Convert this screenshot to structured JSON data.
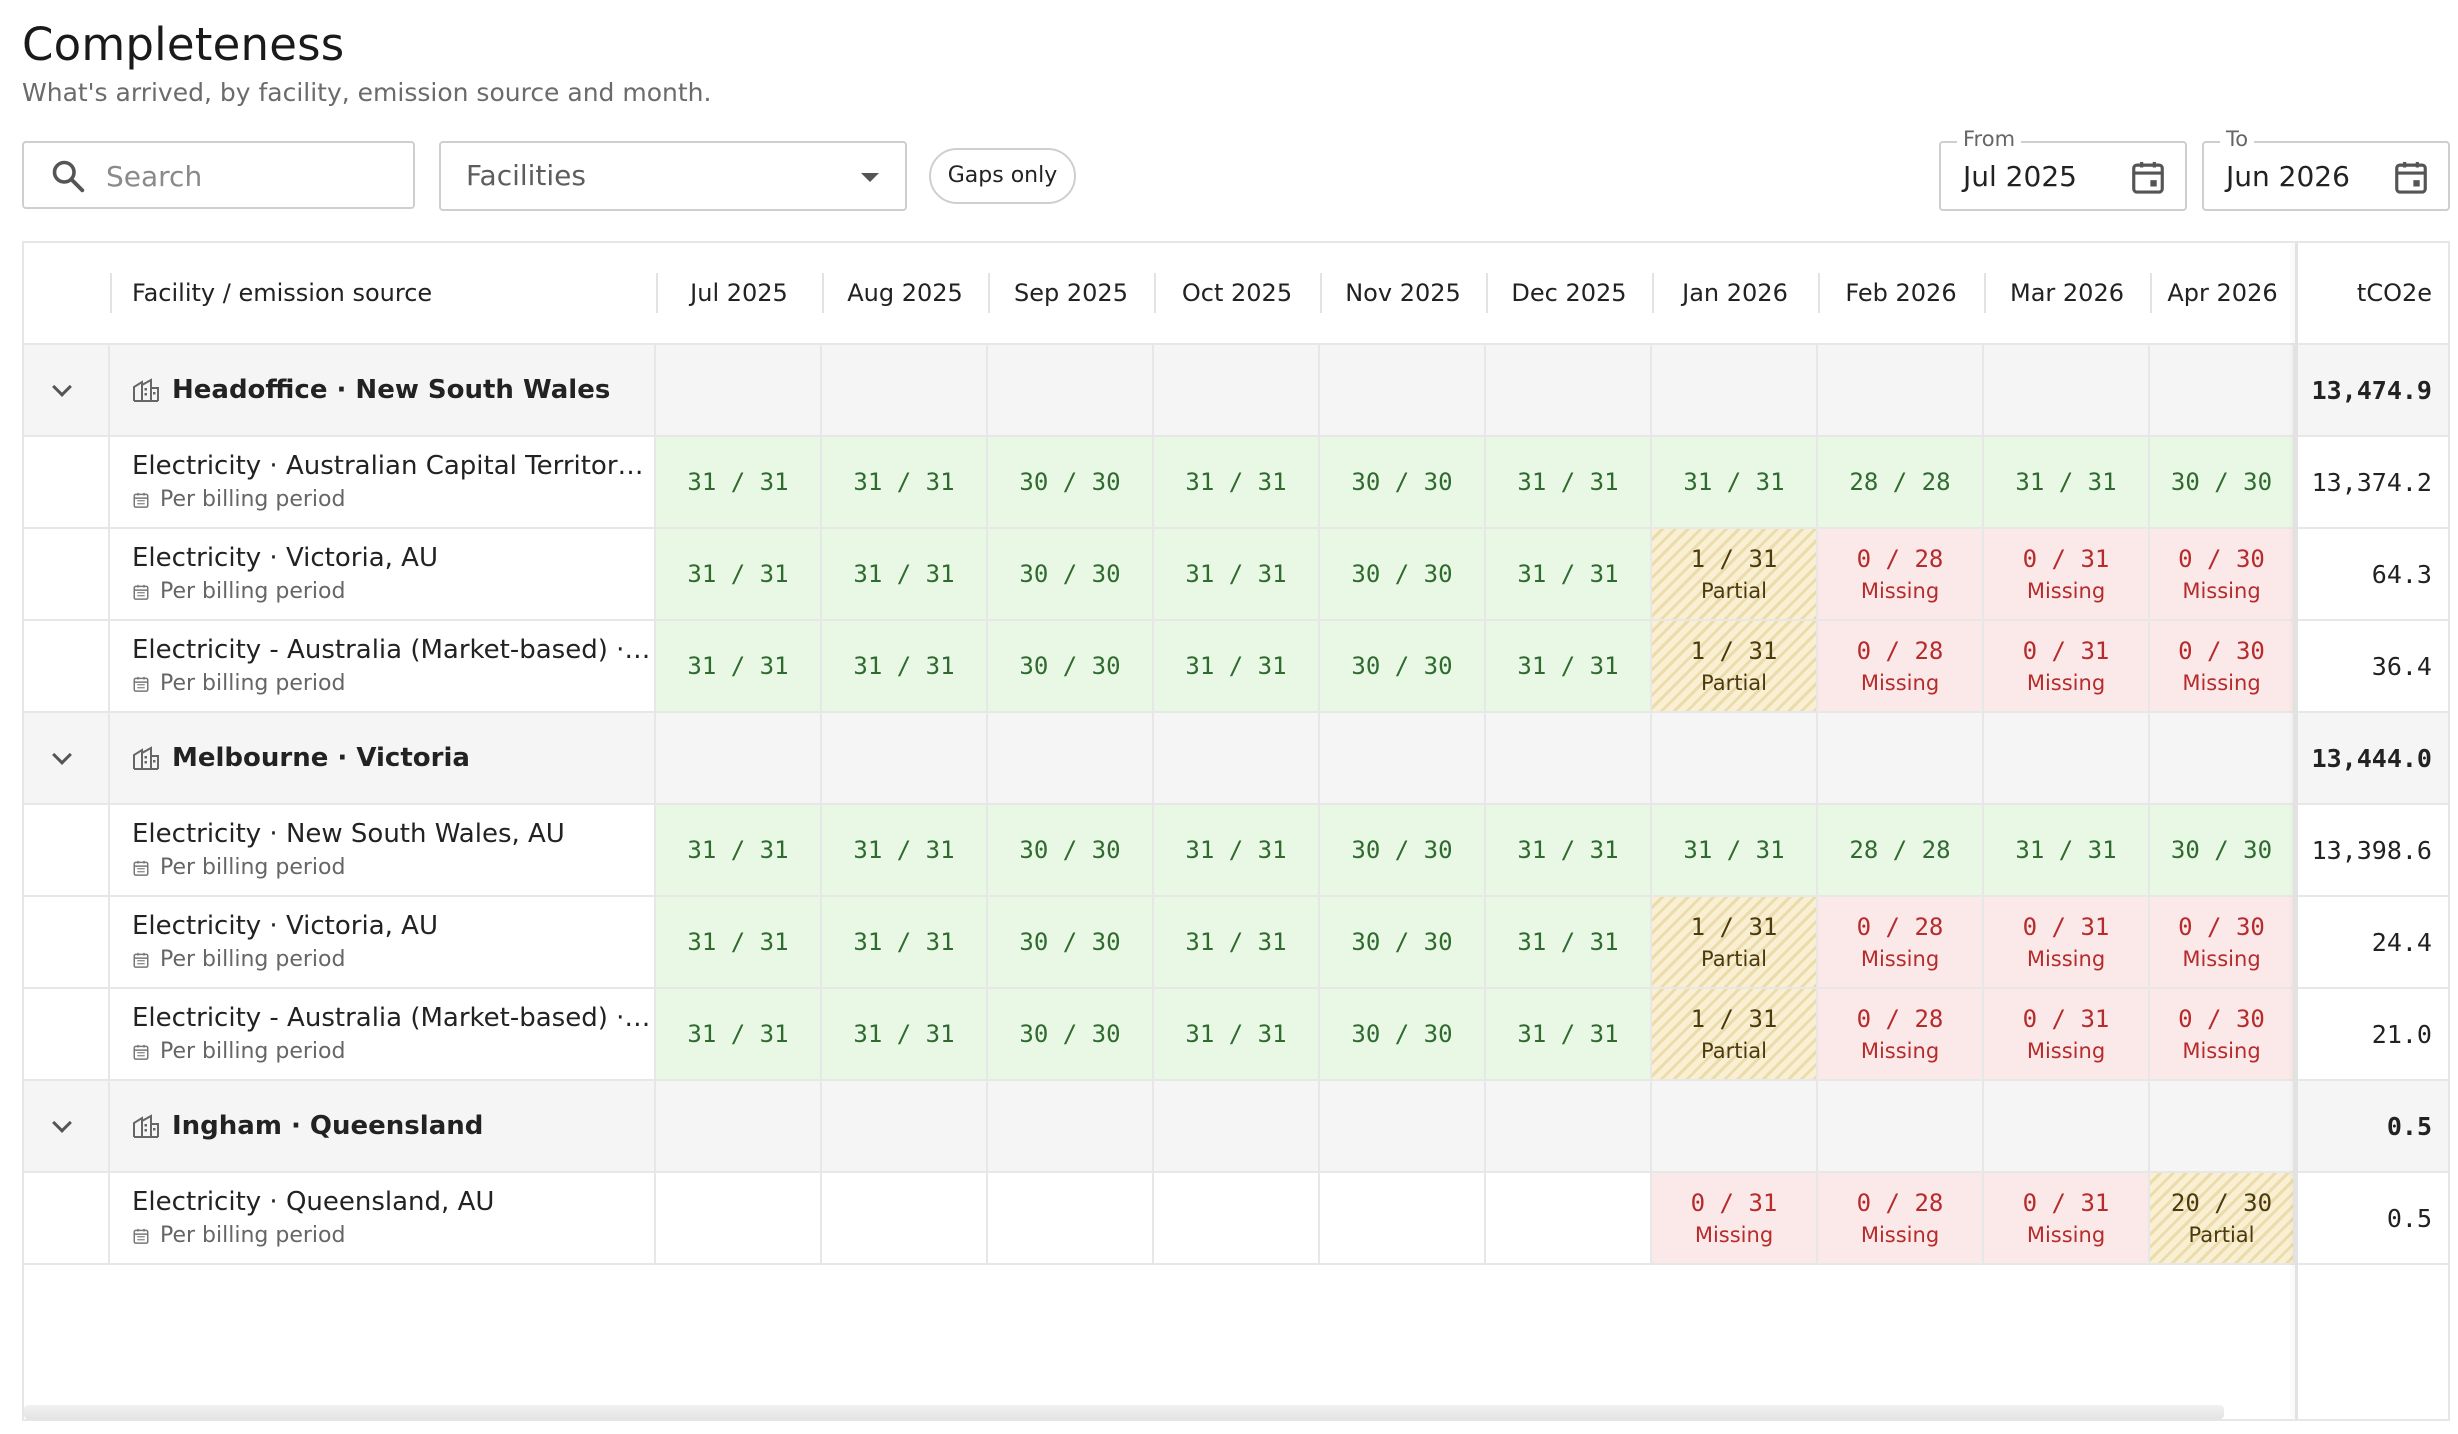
{
  "page": {
    "title": "Completeness",
    "subtitle": "What's arrived, by facility, emission source and month."
  },
  "filters": {
    "search_placeholder": "Search",
    "facilities_label": "Facilities",
    "gaps_label": "Gaps only",
    "from_label": "From",
    "from_value": "Jul 2025",
    "to_label": "To",
    "to_value": "Jun 2026"
  },
  "table": {
    "col_facility": "Facility / emission source",
    "months": [
      "Jul 2025",
      "Aug 2025",
      "Sep 2025",
      "Oct 2025",
      "Nov 2025",
      "Dec 2025",
      "Jan 2026",
      "Feb 2026",
      "Mar 2026",
      "Apr 2026"
    ],
    "col_total": "tCO2e",
    "groups": [
      {
        "name": "Headoffice · New South Wales",
        "total": "13,474.9",
        "rows": [
          {
            "name": "Electricity · Australian Capital Territory, AU",
            "period": "Per billing period",
            "total": "13,374.2",
            "cells": [
              {
                "v": "31 / 31",
                "s": "",
                "state": "complete"
              },
              {
                "v": "31 / 31",
                "s": "",
                "state": "complete"
              },
              {
                "v": "30 / 30",
                "s": "",
                "state": "complete"
              },
              {
                "v": "31 / 31",
                "s": "",
                "state": "complete"
              },
              {
                "v": "30 / 30",
                "s": "",
                "state": "complete"
              },
              {
                "v": "31 / 31",
                "s": "",
                "state": "complete"
              },
              {
                "v": "31 / 31",
                "s": "",
                "state": "complete"
              },
              {
                "v": "28 / 28",
                "s": "",
                "state": "complete"
              },
              {
                "v": "31 / 31",
                "s": "",
                "state": "complete"
              },
              {
                "v": "30 / 30",
                "s": "",
                "state": "complete"
              }
            ]
          },
          {
            "name": "Electricity · Victoria, AU",
            "period": "Per billing period",
            "total": "64.3",
            "cells": [
              {
                "v": "31 / 31",
                "s": "",
                "state": "complete"
              },
              {
                "v": "31 / 31",
                "s": "",
                "state": "complete"
              },
              {
                "v": "30 / 30",
                "s": "",
                "state": "complete"
              },
              {
                "v": "31 / 31",
                "s": "",
                "state": "complete"
              },
              {
                "v": "30 / 30",
                "s": "",
                "state": "complete"
              },
              {
                "v": "31 / 31",
                "s": "",
                "state": "complete"
              },
              {
                "v": "1 / 31",
                "s": "Partial",
                "state": "partial"
              },
              {
                "v": "0 / 28",
                "s": "Missing",
                "state": "missing"
              },
              {
                "v": "0 / 31",
                "s": "Missing",
                "state": "missing"
              },
              {
                "v": "0 / 30",
                "s": "Missing",
                "state": "missing"
              }
            ]
          },
          {
            "name": "Electricity - Australia (Market-based) · Aus...",
            "period": "Per billing period",
            "total": "36.4",
            "cells": [
              {
                "v": "31 / 31",
                "s": "",
                "state": "complete"
              },
              {
                "v": "31 / 31",
                "s": "",
                "state": "complete"
              },
              {
                "v": "30 / 30",
                "s": "",
                "state": "complete"
              },
              {
                "v": "31 / 31",
                "s": "",
                "state": "complete"
              },
              {
                "v": "30 / 30",
                "s": "",
                "state": "complete"
              },
              {
                "v": "31 / 31",
                "s": "",
                "state": "complete"
              },
              {
                "v": "1 / 31",
                "s": "Partial",
                "state": "partial"
              },
              {
                "v": "0 / 28",
                "s": "Missing",
                "state": "missing"
              },
              {
                "v": "0 / 31",
                "s": "Missing",
                "state": "missing"
              },
              {
                "v": "0 / 30",
                "s": "Missing",
                "state": "missing"
              }
            ]
          }
        ]
      },
      {
        "name": "Melbourne · Victoria",
        "total": "13,444.0",
        "rows": [
          {
            "name": "Electricity · New South Wales, AU",
            "period": "Per billing period",
            "total": "13,398.6",
            "cells": [
              {
                "v": "31 / 31",
                "s": "",
                "state": "complete"
              },
              {
                "v": "31 / 31",
                "s": "",
                "state": "complete"
              },
              {
                "v": "30 / 30",
                "s": "",
                "state": "complete"
              },
              {
                "v": "31 / 31",
                "s": "",
                "state": "complete"
              },
              {
                "v": "30 / 30",
                "s": "",
                "state": "complete"
              },
              {
                "v": "31 / 31",
                "s": "",
                "state": "complete"
              },
              {
                "v": "31 / 31",
                "s": "",
                "state": "complete"
              },
              {
                "v": "28 / 28",
                "s": "",
                "state": "complete"
              },
              {
                "v": "31 / 31",
                "s": "",
                "state": "complete"
              },
              {
                "v": "30 / 30",
                "s": "",
                "state": "complete"
              }
            ]
          },
          {
            "name": "Electricity · Victoria, AU",
            "period": "Per billing period",
            "total": "24.4",
            "cells": [
              {
                "v": "31 / 31",
                "s": "",
                "state": "complete"
              },
              {
                "v": "31 / 31",
                "s": "",
                "state": "complete"
              },
              {
                "v": "30 / 30",
                "s": "",
                "state": "complete"
              },
              {
                "v": "31 / 31",
                "s": "",
                "state": "complete"
              },
              {
                "v": "30 / 30",
                "s": "",
                "state": "complete"
              },
              {
                "v": "31 / 31",
                "s": "",
                "state": "complete"
              },
              {
                "v": "1 / 31",
                "s": "Partial",
                "state": "partial"
              },
              {
                "v": "0 / 28",
                "s": "Missing",
                "state": "missing"
              },
              {
                "v": "0 / 31",
                "s": "Missing",
                "state": "missing"
              },
              {
                "v": "0 / 30",
                "s": "Missing",
                "state": "missing"
              }
            ]
          },
          {
            "name": "Electricity - Australia (Market-based) · Aus...",
            "period": "Per billing period",
            "total": "21.0",
            "cells": [
              {
                "v": "31 / 31",
                "s": "",
                "state": "complete"
              },
              {
                "v": "31 / 31",
                "s": "",
                "state": "complete"
              },
              {
                "v": "30 / 30",
                "s": "",
                "state": "complete"
              },
              {
                "v": "31 / 31",
                "s": "",
                "state": "complete"
              },
              {
                "v": "30 / 30",
                "s": "",
                "state": "complete"
              },
              {
                "v": "31 / 31",
                "s": "",
                "state": "complete"
              },
              {
                "v": "1 / 31",
                "s": "Partial",
                "state": "partial"
              },
              {
                "v": "0 / 28",
                "s": "Missing",
                "state": "missing"
              },
              {
                "v": "0 / 31",
                "s": "Missing",
                "state": "missing"
              },
              {
                "v": "0 / 30",
                "s": "Missing",
                "state": "missing"
              }
            ]
          }
        ]
      },
      {
        "name": "Ingham · Queensland",
        "total": "0.5",
        "rows": [
          {
            "name": "Electricity · Queensland, AU",
            "period": "Per billing period",
            "total": "0.5",
            "cells": [
              {
                "v": "",
                "s": "",
                "state": "empty"
              },
              {
                "v": "",
                "s": "",
                "state": "empty"
              },
              {
                "v": "",
                "s": "",
                "state": "empty"
              },
              {
                "v": "",
                "s": "",
                "state": "empty"
              },
              {
                "v": "",
                "s": "",
                "state": "empty"
              },
              {
                "v": "",
                "s": "",
                "state": "empty"
              },
              {
                "v": "0 / 31",
                "s": "Missing",
                "state": "missing"
              },
              {
                "v": "0 / 28",
                "s": "Missing",
                "state": "missing"
              },
              {
                "v": "0 / 31",
                "s": "Missing",
                "state": "missing"
              },
              {
                "v": "20 / 30",
                "s": "Partial",
                "state": "partial"
              }
            ]
          }
        ]
      }
    ]
  },
  "colors": {
    "complete": "#e9f7e5",
    "partial": "#f9efd2",
    "missing": "#fbe8e8"
  }
}
